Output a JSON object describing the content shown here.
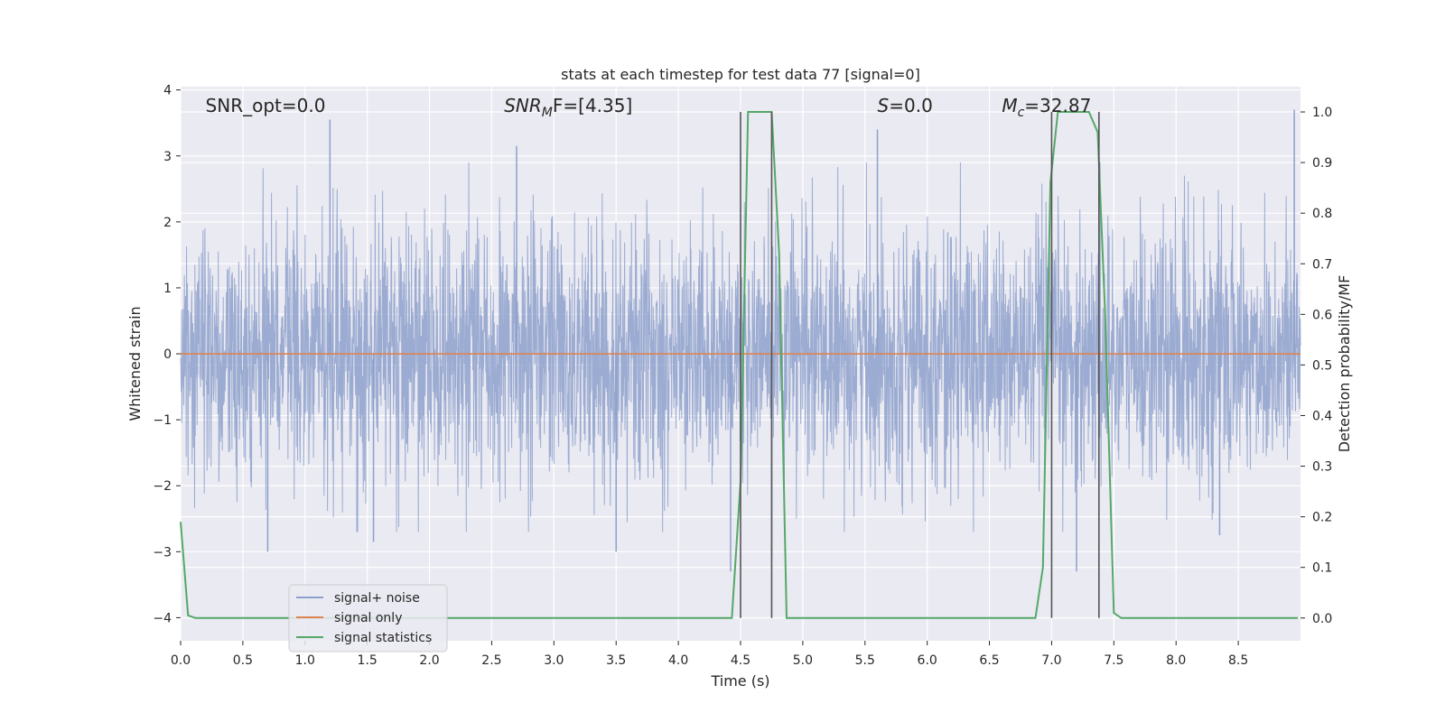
{
  "chart_data": {
    "type": "line",
    "title": "stats at each timestep for test data 77 [signal=0]",
    "xlabel": "Time (s)",
    "ylabel": "Whitened strain",
    "ylabel_right": "Detection probability/MF",
    "xlim": [
      0,
      9
    ],
    "ylim": [
      -4.35,
      4.05
    ],
    "ylim_right": [
      -0.045,
      1.05
    ],
    "x_ticks": [
      0.0,
      0.5,
      1.0,
      1.5,
      2.0,
      2.5,
      3.0,
      3.5,
      4.0,
      4.5,
      5.0,
      5.5,
      6.0,
      6.5,
      7.0,
      7.5,
      8.0,
      8.5
    ],
    "x_tick_labels": [
      "0.0",
      "0.5",
      "1.0",
      "1.5",
      "2.0",
      "2.5",
      "3.0",
      "3.5",
      "4.0",
      "4.5",
      "5.0",
      "5.5",
      "6.0",
      "6.5",
      "7.0",
      "7.5",
      "8.0",
      "8.5"
    ],
    "y_ticks": [
      4,
      3,
      2,
      1,
      0,
      -1,
      -2,
      -3,
      -4
    ],
    "y_tick_labels": [
      "4",
      "3",
      "2",
      "1",
      "0",
      "−1",
      "−2",
      "−3",
      "−4"
    ],
    "y_right_ticks": [
      1.0,
      0.9,
      0.8,
      0.7,
      0.6,
      0.5,
      0.4,
      0.3,
      0.2,
      0.1,
      0.0
    ],
    "y_right_tick_labels": [
      "1.0",
      "0.9",
      "0.8",
      "0.7",
      "0.6",
      "0.5",
      "0.4",
      "0.3",
      "0.2",
      "0.1",
      "0.0"
    ],
    "grid": true,
    "legend_position": "lower-left",
    "annotations": [
      {
        "text": "SNR_opt=0.0",
        "x": 0.2
      },
      {
        "text": "SNR",
        "sub": "M",
        "tail": "F=[4.35]",
        "x": 2.6,
        "italic": true
      },
      {
        "text": "S",
        "tail": "=0.0",
        "x": 5.6,
        "italic": true
      },
      {
        "text": "M",
        "sub": "c",
        "tail": "=32.87",
        "x": 6.6,
        "italic": true
      }
    ],
    "vlines_x": [
      4.5,
      4.75,
      7.0,
      7.38
    ],
    "series": [
      {
        "name": "signal+ noise",
        "color": "#8da0cb",
        "noise_std": 0.95,
        "duration": 9.0,
        "spikes": [
          {
            "x": 1.2,
            "y": 3.55
          },
          {
            "x": 2.7,
            "y": 3.15
          },
          {
            "x": 5.6,
            "y": 3.4
          },
          {
            "x": 8.95,
            "y": 3.7
          },
          {
            "x": 0.7,
            "y": -3.0
          },
          {
            "x": 3.5,
            "y": -3.0
          },
          {
            "x": 7.2,
            "y": -3.3
          },
          {
            "x": 4.42,
            "y": -3.3
          },
          {
            "x": 4.75,
            "y": -3.1
          },
          {
            "x": 1.55,
            "y": -2.85
          },
          {
            "x": 8.35,
            "y": -2.75
          }
        ]
      },
      {
        "name": "signal only",
        "color": "#dd8452",
        "values_const": 0.0
      },
      {
        "name": "signal statistics",
        "color": "#55a868",
        "axis": "right",
        "x": [
          0.0,
          0.06,
          0.12,
          4.43,
          4.5,
          4.56,
          4.75,
          4.81,
          4.87,
          6.87,
          6.93,
          6.99,
          7.05,
          7.3,
          7.37,
          7.43,
          7.5,
          7.56,
          8.98
        ],
        "y": [
          0.19,
          0.005,
          0.0,
          0.0,
          0.27,
          1.0,
          1.0,
          0.72,
          0.0,
          0.0,
          0.1,
          0.86,
          1.0,
          1.0,
          0.96,
          0.6,
          0.01,
          0.0,
          0.0
        ]
      }
    ]
  }
}
